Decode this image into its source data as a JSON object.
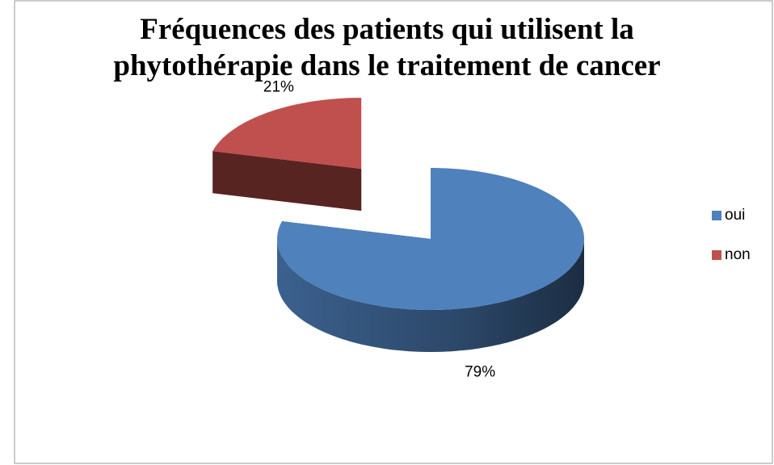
{
  "chart_data": {
    "type": "pie",
    "title": "Fréquences des patients qui utilisent la phytothérapie dans le traitement de cancer",
    "categories": [
      "oui",
      "non"
    ],
    "values": [
      79,
      21
    ],
    "value_labels": [
      "79%",
      "21%"
    ],
    "colors": [
      "#4f81bd",
      "#c0504d"
    ],
    "legend": "right"
  }
}
